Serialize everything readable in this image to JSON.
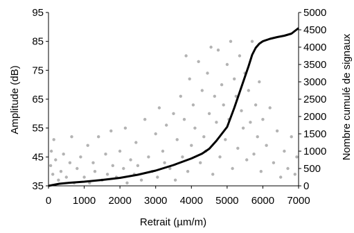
{
  "chart_data": {
    "type": "scatter",
    "xlabel": "Retrait (µm/m)",
    "ylabel_left": "Amplitude (dB)",
    "ylabel_right": "Nombre cumulé de signaux",
    "xlim": [
      0,
      7000
    ],
    "ylim_left": [
      35,
      95
    ],
    "ylim_right": [
      0,
      5000
    ],
    "x_ticks": [
      0,
      1000,
      2000,
      3000,
      4000,
      5000,
      6000,
      7000
    ],
    "y_left_ticks": [
      35,
      45,
      55,
      65,
      75,
      85,
      95
    ],
    "y_right_ticks": [
      0,
      500,
      1000,
      1500,
      2000,
      2500,
      3000,
      3500,
      4000,
      4500,
      5000
    ],
    "grid": false,
    "legend": "none",
    "colors": {
      "scatter": "#b3b3b3",
      "cumulative_line": "#000000",
      "axes": "#000000"
    },
    "series": [
      {
        "type": "scatter",
        "axis": "left",
        "points": [
          [
            60,
            42
          ],
          [
            80,
            47
          ],
          [
            120,
            39
          ],
          [
            150,
            51
          ],
          [
            200,
            44
          ],
          [
            280,
            37
          ],
          [
            350,
            40
          ],
          [
            420,
            46
          ],
          [
            500,
            38
          ],
          [
            600,
            43
          ],
          [
            650,
            52
          ],
          [
            720,
            36
          ],
          [
            800,
            41
          ],
          [
            900,
            45
          ],
          [
            1000,
            38
          ],
          [
            1100,
            49
          ],
          [
            1150,
            36
          ],
          [
            1250,
            43
          ],
          [
            1300,
            40
          ],
          [
            1400,
            52
          ],
          [
            1500,
            37
          ],
          [
            1600,
            46
          ],
          [
            1650,
            39
          ],
          [
            1750,
            54
          ],
          [
            1800,
            42
          ],
          [
            1900,
            38
          ],
          [
            2000,
            47
          ],
          [
            2100,
            41
          ],
          [
            2150,
            55
          ],
          [
            2200,
            36
          ],
          [
            2300,
            44
          ],
          [
            2400,
            39
          ],
          [
            2450,
            50
          ],
          [
            2500,
            42
          ],
          [
            2600,
            37
          ],
          [
            2700,
            58
          ],
          [
            2800,
            45
          ],
          [
            2900,
            40
          ],
          [
            3000,
            53
          ],
          [
            3050,
            38
          ],
          [
            3100,
            62
          ],
          [
            3200,
            47
          ],
          [
            3250,
            43
          ],
          [
            3300,
            56
          ],
          [
            3400,
            41
          ],
          [
            3500,
            60
          ],
          [
            3550,
            37
          ],
          [
            3600,
            51
          ],
          [
            3700,
            66
          ],
          [
            3750,
            45
          ],
          [
            3800,
            58
          ],
          [
            3850,
            80
          ],
          [
            3900,
            40
          ],
          [
            3950,
            72
          ],
          [
            4000,
            49
          ],
          [
            4050,
            63
          ],
          [
            4100,
            55
          ],
          [
            4200,
            78
          ],
          [
            4250,
            43
          ],
          [
            4300,
            68
          ],
          [
            4350,
            52
          ],
          [
            4400,
            47
          ],
          [
            4450,
            74
          ],
          [
            4500,
            60
          ],
          [
            4550,
            83
          ],
          [
            4600,
            39
          ],
          [
            4650,
            66
          ],
          [
            4700,
            57
          ],
          [
            4750,
            82
          ],
          [
            4800,
            45
          ],
          [
            4850,
            70
          ],
          [
            4900,
            63
          ],
          [
            4950,
            51
          ],
          [
            5000,
            77
          ],
          [
            5050,
            58
          ],
          [
            5100,
            85
          ],
          [
            5150,
            41
          ],
          [
            5200,
            72
          ],
          [
            5250,
            66
          ],
          [
            5300,
            48
          ],
          [
            5350,
            80
          ],
          [
            5400,
            61
          ],
          [
            5450,
            55
          ],
          [
            5500,
            74
          ],
          [
            5550,
            44
          ],
          [
            5600,
            68
          ],
          [
            5650,
            57
          ],
          [
            5700,
            85
          ],
          [
            5750,
            46
          ],
          [
            5800,
            63
          ],
          [
            5850,
            52
          ],
          [
            5900,
            71
          ],
          [
            5950,
            40
          ],
          [
            6000,
            58
          ],
          [
            6100,
            49
          ],
          [
            6200,
            62
          ],
          [
            6300,
            43
          ],
          [
            6400,
            54
          ],
          [
            6500,
            38
          ],
          [
            6600,
            47
          ],
          [
            6700,
            41
          ],
          [
            6800,
            52
          ],
          [
            6900,
            39
          ],
          [
            6950,
            45
          ]
        ]
      },
      {
        "type": "line",
        "axis": "right",
        "name": "",
        "x": [
          0,
          300,
          600,
          1000,
          1500,
          2000,
          2500,
          3000,
          3500,
          4000,
          4300,
          4500,
          4700,
          5000,
          5200,
          5400,
          5600,
          5700,
          5800,
          5900,
          6000,
          6200,
          6400,
          6600,
          6800,
          7000
        ],
        "y": [
          0,
          60,
          90,
          120,
          170,
          230,
          320,
          440,
          600,
          790,
          930,
          1070,
          1300,
          1700,
          2250,
          2850,
          3450,
          3780,
          3980,
          4100,
          4170,
          4240,
          4290,
          4330,
          4390,
          4550
        ]
      }
    ]
  }
}
